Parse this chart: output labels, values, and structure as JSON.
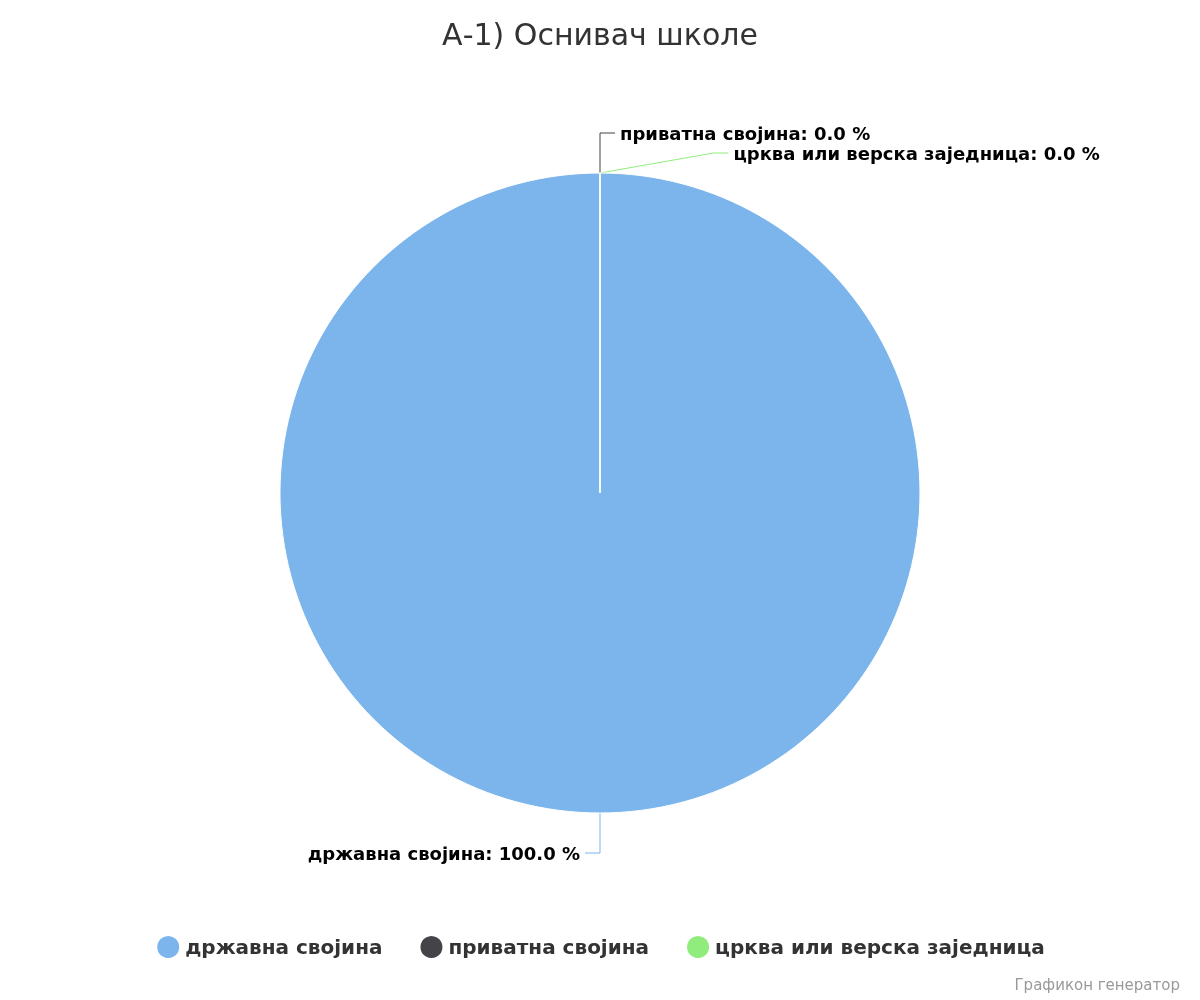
{
  "chart_data": {
    "type": "pie",
    "title": "А-1) Оснивач школе",
    "categories": [
      "државна својина",
      "приватна својина",
      "црква или верска заједница"
    ],
    "values": [
      100,
      0,
      0
    ],
    "colors": [
      "#7cb5ec",
      "#434348",
      "#90ed7d"
    ],
    "value_labels": [
      "државна својина: 100.0 %",
      "приватна својина: 0.0 %",
      "црква или верска заједница: 0.0 %"
    ],
    "legend": "bottom",
    "annotations": [
      "Графикон генератор"
    ]
  }
}
